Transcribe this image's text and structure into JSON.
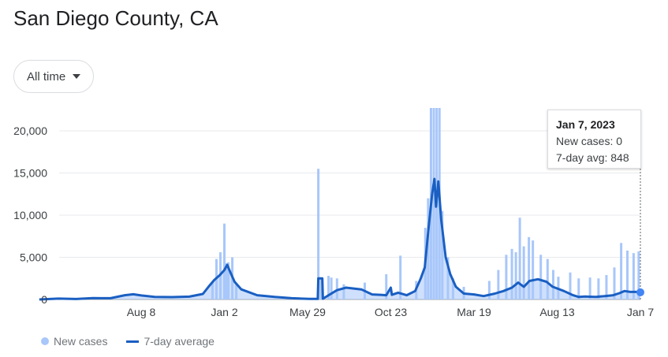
{
  "header": {
    "title": "San Diego County, CA"
  },
  "range_button": {
    "label": "All time"
  },
  "tooltip": {
    "date": "Jan 7, 2023",
    "new_cases": "New cases: 0",
    "avg": "7-day avg: 848"
  },
  "legend": {
    "bars": "New cases",
    "line": "7-day average"
  },
  "colors": {
    "bars": "#a8c7fa",
    "line": "#1a5fc2"
  },
  "chart_data": {
    "type": "bar",
    "title": "",
    "xlabel": "",
    "ylabel": "",
    "ylim": [
      0,
      22000
    ],
    "yticks": [
      0,
      5000,
      10000,
      15000,
      20000
    ],
    "ytick_labels": [
      "0",
      "5,000",
      "10,000",
      "15,000",
      "20,000"
    ],
    "xticks": [
      {
        "label": "Aug 8",
        "date": "2020-08-08"
      },
      {
        "label": "Jan 2",
        "date": "2021-01-02"
      },
      {
        "label": "May 29",
        "date": "2021-05-29"
      },
      {
        "label": "Oct 23",
        "date": "2021-10-23"
      },
      {
        "label": "Mar 19",
        "date": "2022-03-19"
      },
      {
        "label": "Aug 13",
        "date": "2022-08-13"
      },
      {
        "label": "Jan 7",
        "date": "2023-01-07"
      }
    ],
    "series": [
      {
        "name": "New cases",
        "points": [
          [
            "2020-12-12",
            2000
          ],
          [
            "2020-12-19",
            4800
          ],
          [
            "2020-12-26",
            5600
          ],
          [
            "2021-01-02",
            9000
          ],
          [
            "2021-01-05",
            4300
          ],
          [
            "2021-01-09",
            4400
          ],
          [
            "2021-01-16",
            5000
          ],
          [
            "2021-01-23",
            1800
          ],
          [
            "2021-06-17",
            15500
          ],
          [
            "2021-06-22",
            2500
          ],
          [
            "2021-07-05",
            2800
          ],
          [
            "2021-07-10",
            2600
          ],
          [
            "2021-07-20",
            2500
          ],
          [
            "2021-08-01",
            1800
          ],
          [
            "2021-09-07",
            2000
          ],
          [
            "2021-10-15",
            3000
          ],
          [
            "2021-11-09",
            5200
          ],
          [
            "2021-12-07",
            2200
          ],
          [
            "2021-12-23",
            8500
          ],
          [
            "2021-12-28",
            12000
          ],
          [
            "2022-01-02",
            23000
          ],
          [
            "2022-01-07",
            23000
          ],
          [
            "2022-01-12",
            23000
          ],
          [
            "2022-01-17",
            23000
          ],
          [
            "2022-01-22",
            10500
          ],
          [
            "2022-02-01",
            5000
          ],
          [
            "2022-02-10",
            2500
          ],
          [
            "2022-03-01",
            1500
          ],
          [
            "2022-04-15",
            2200
          ],
          [
            "2022-05-01",
            3500
          ],
          [
            "2022-05-15",
            5300
          ],
          [
            "2022-05-25",
            6000
          ],
          [
            "2022-06-01",
            5600
          ],
          [
            "2022-06-08",
            9700
          ],
          [
            "2022-06-15",
            6300
          ],
          [
            "2022-06-24",
            7400
          ],
          [
            "2022-07-01",
            7000
          ],
          [
            "2022-07-15",
            5300
          ],
          [
            "2022-07-27",
            4800
          ],
          [
            "2022-08-06",
            3500
          ],
          [
            "2022-08-15",
            2700
          ],
          [
            "2022-09-05",
            3200
          ],
          [
            "2022-09-20",
            2500
          ],
          [
            "2022-10-10",
            2600
          ],
          [
            "2022-10-25",
            2500
          ],
          [
            "2022-11-08",
            2900
          ],
          [
            "2022-11-22",
            3800
          ],
          [
            "2022-12-04",
            6700
          ],
          [
            "2022-12-15",
            5800
          ],
          [
            "2022-12-26",
            5500
          ],
          [
            "2023-01-04",
            5700
          ],
          [
            "2023-01-07",
            0
          ]
        ]
      },
      {
        "name": "7-day average",
        "points": [
          [
            "2020-02-10",
            0
          ],
          [
            "2020-03-15",
            100
          ],
          [
            "2020-04-15",
            60
          ],
          [
            "2020-05-15",
            160
          ],
          [
            "2020-06-15",
            150
          ],
          [
            "2020-07-10",
            500
          ],
          [
            "2020-07-25",
            620
          ],
          [
            "2020-08-08",
            480
          ],
          [
            "2020-09-01",
            300
          ],
          [
            "2020-10-01",
            280
          ],
          [
            "2020-11-01",
            340
          ],
          [
            "2020-11-25",
            650
          ],
          [
            "2020-12-05",
            1500
          ],
          [
            "2020-12-15",
            2300
          ],
          [
            "2020-12-25",
            2900
          ],
          [
            "2021-01-02",
            3500
          ],
          [
            "2021-01-07",
            4100
          ],
          [
            "2021-01-12",
            3300
          ],
          [
            "2021-01-20",
            2100
          ],
          [
            "2021-02-01",
            1200
          ],
          [
            "2021-03-01",
            500
          ],
          [
            "2021-04-01",
            300
          ],
          [
            "2021-05-01",
            150
          ],
          [
            "2021-06-01",
            70
          ],
          [
            "2021-06-16",
            70
          ],
          [
            "2021-06-17",
            2500
          ],
          [
            "2021-06-24",
            2500
          ],
          [
            "2021-06-25",
            80
          ],
          [
            "2021-07-05",
            500
          ],
          [
            "2021-07-20",
            1100
          ],
          [
            "2021-08-05",
            1400
          ],
          [
            "2021-09-01",
            1200
          ],
          [
            "2021-09-20",
            600
          ],
          [
            "2021-10-05",
            550
          ],
          [
            "2021-10-15",
            500
          ],
          [
            "2021-10-23",
            1400
          ],
          [
            "2021-10-25",
            550
          ],
          [
            "2021-11-05",
            800
          ],
          [
            "2021-11-20",
            500
          ],
          [
            "2021-12-05",
            1000
          ],
          [
            "2021-12-15",
            2500
          ],
          [
            "2021-12-22",
            3800
          ],
          [
            "2021-12-28",
            8000
          ],
          [
            "2022-01-04",
            12500
          ],
          [
            "2022-01-08",
            14300
          ],
          [
            "2022-01-11",
            11000
          ],
          [
            "2022-01-15",
            14000
          ],
          [
            "2022-01-20",
            9500
          ],
          [
            "2022-01-28",
            5000
          ],
          [
            "2022-02-05",
            3000
          ],
          [
            "2022-02-15",
            1500
          ],
          [
            "2022-03-01",
            700
          ],
          [
            "2022-03-19",
            600
          ],
          [
            "2022-04-05",
            400
          ],
          [
            "2022-04-25",
            700
          ],
          [
            "2022-05-10",
            1000
          ],
          [
            "2022-05-25",
            1400
          ],
          [
            "2022-06-05",
            2000
          ],
          [
            "2022-06-15",
            1500
          ],
          [
            "2022-06-25",
            2200
          ],
          [
            "2022-07-10",
            2400
          ],
          [
            "2022-07-25",
            2100
          ],
          [
            "2022-08-05",
            1500
          ],
          [
            "2022-08-25",
            1000
          ],
          [
            "2022-09-10",
            500
          ],
          [
            "2022-09-20",
            300
          ],
          [
            "2022-10-01",
            350
          ],
          [
            "2022-10-20",
            300
          ],
          [
            "2022-11-05",
            400
          ],
          [
            "2022-11-20",
            500
          ],
          [
            "2022-12-01",
            750
          ],
          [
            "2022-12-10",
            1000
          ],
          [
            "2022-12-20",
            900
          ],
          [
            "2023-01-01",
            900
          ],
          [
            "2023-01-07",
            848
          ]
        ]
      }
    ]
  }
}
